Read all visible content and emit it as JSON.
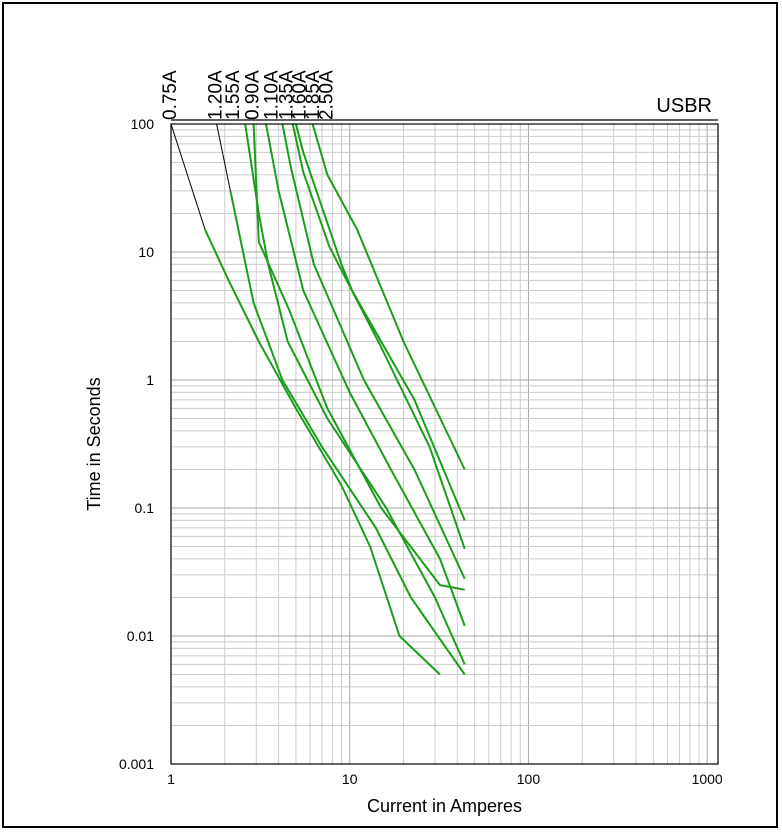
{
  "chart_data": {
    "type": "line",
    "title": "USBR",
    "xlabel": "Current in Amperes",
    "ylabel": "Time in Seconds",
    "x_scale": "log",
    "y_scale": "log",
    "xlim": [
      1,
      1150
    ],
    "ylim": [
      0.001,
      100
    ],
    "x_ticks": [
      {
        "value": 1,
        "label": "1"
      },
      {
        "value": 10,
        "label": "10"
      },
      {
        "value": 100,
        "label": "100"
      },
      {
        "value": 1000,
        "label": "1000"
      }
    ],
    "y_ticks": [
      {
        "value": 100,
        "label": "100"
      },
      {
        "value": 10,
        "label": "10"
      },
      {
        "value": 1,
        "label": "1"
      },
      {
        "value": 0.1,
        "label": "0.1"
      },
      {
        "value": 0.01,
        "label": "0.01"
      },
      {
        "value": 0.001,
        "label": "0.001"
      }
    ],
    "grid": true,
    "line_color": "#1a9e1a",
    "series": [
      {
        "name": "0.75A",
        "label_at": [
          1.0,
          100
        ],
        "points": [
          [
            1.55,
            15
          ],
          [
            2.1,
            6
          ],
          [
            3.1,
            2
          ],
          [
            5,
            0.6
          ],
          [
            9,
            0.15
          ],
          [
            13,
            0.05
          ],
          [
            19,
            0.01
          ],
          [
            32,
            0.005
          ]
        ]
      },
      {
        "name": "1.20A",
        "label_at": [
          1.8,
          100
        ],
        "points": [
          [
            2.15,
            30
          ],
          [
            2.9,
            4
          ],
          [
            4.2,
            1
          ],
          [
            7,
            0.3
          ],
          [
            14,
            0.07
          ],
          [
            22,
            0.02
          ],
          [
            44,
            0.005
          ]
        ]
      },
      {
        "name": "1.55A",
        "label_at": [
          2.25,
          100
        ],
        "points": [
          [
            2.6,
            100
          ],
          [
            3.1,
            20
          ],
          [
            3.5,
            8
          ],
          [
            4.5,
            2
          ],
          [
            7.5,
            0.5
          ],
          [
            16,
            0.1
          ],
          [
            30,
            0.02
          ],
          [
            44,
            0.006
          ]
        ]
      },
      {
        "name": "0.90A",
        "label_at": [
          2.9,
          100
        ],
        "points": [
          [
            2.9,
            100
          ],
          [
            3.1,
            12
          ],
          [
            4.6,
            3.5
          ],
          [
            6.5,
            1
          ],
          [
            7.5,
            0.6
          ],
          [
            15,
            0.1
          ],
          [
            32,
            0.025
          ],
          [
            44,
            0.023
          ]
        ]
      },
      {
        "name": "1.10A",
        "label_at": [
          3.7,
          100
        ],
        "points": [
          [
            3.4,
            100
          ],
          [
            4,
            30
          ],
          [
            5.5,
            5
          ],
          [
            10,
            0.8
          ],
          [
            17,
            0.2
          ],
          [
            32,
            0.04
          ],
          [
            44,
            0.012
          ]
        ]
      },
      {
        "name": "1.35A",
        "label_at": [
          4.5,
          100
        ],
        "points": [
          [
            4.2,
            100
          ],
          [
            4.7,
            45
          ],
          [
            6.3,
            8
          ],
          [
            12,
            1
          ],
          [
            23,
            0.2
          ],
          [
            44,
            0.028
          ]
        ]
      },
      {
        "name": "1.60A",
        "label_at": [
          5.3,
          100
        ],
        "points": [
          [
            4.8,
            100
          ],
          [
            5.5,
            42
          ],
          [
            7.7,
            11
          ],
          [
            15,
            1.8
          ],
          [
            28,
            0.3
          ],
          [
            44,
            0.048
          ]
        ]
      },
      {
        "name": "1.85A",
        "label_at": [
          6.3,
          100
        ],
        "points": [
          [
            5,
            100
          ],
          [
            5.5,
            60
          ],
          [
            9,
            8
          ],
          [
            10.3,
            5
          ],
          [
            23,
            0.7
          ],
          [
            44,
            0.08
          ]
        ]
      },
      {
        "name": "2.50A",
        "label_at": [
          7.5,
          100
        ],
        "points": [
          [
            6.2,
            100
          ],
          [
            7.5,
            40
          ],
          [
            11,
            15
          ],
          [
            20,
            2
          ],
          [
            44,
            0.2
          ]
        ]
      }
    ]
  }
}
